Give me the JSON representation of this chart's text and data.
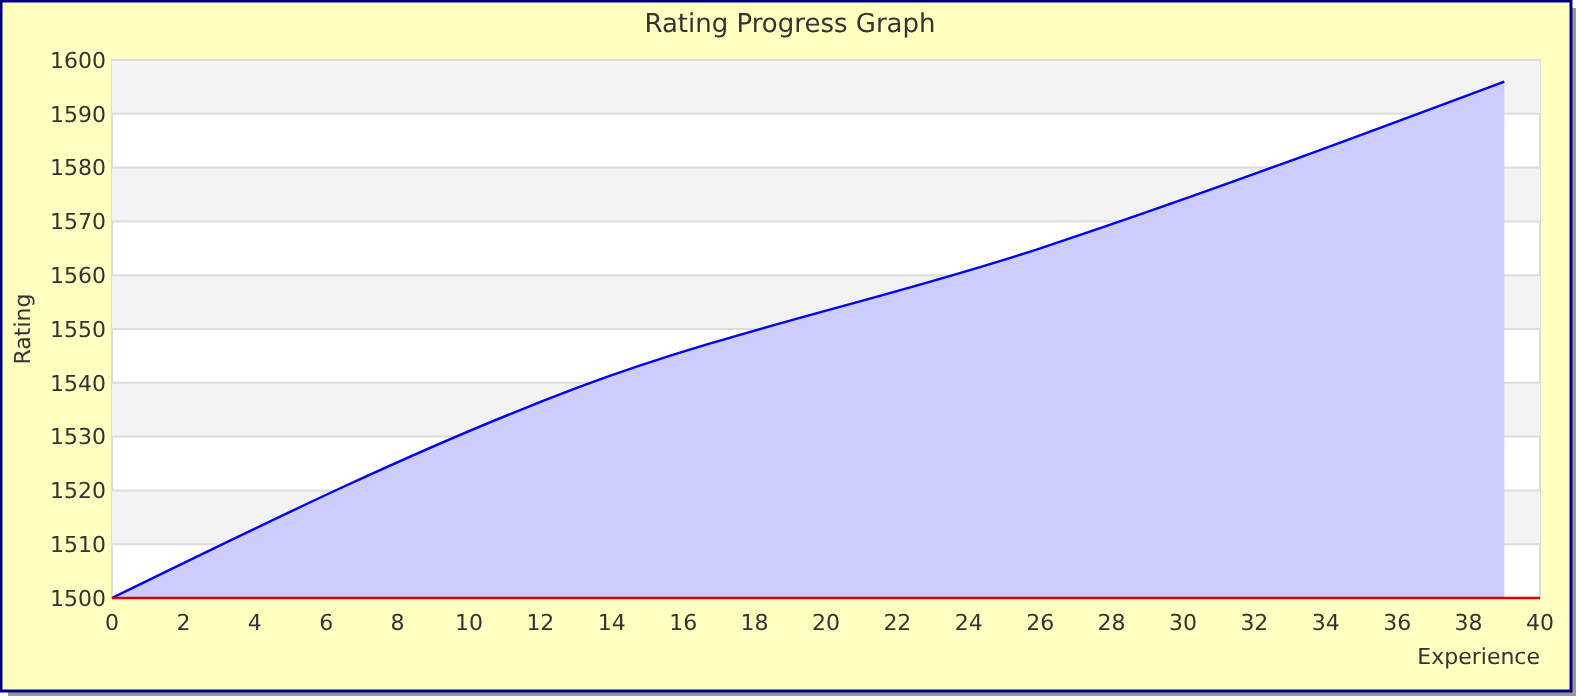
{
  "chart_data": {
    "type": "area",
    "title": "Rating Progress Graph",
    "xlabel": "Experience",
    "ylabel": "Rating",
    "x": [
      0,
      13,
      26,
      39
    ],
    "series": [
      {
        "color": "#0000ff",
        "values": [
          1500,
          1539,
          1565,
          1596
        ]
      }
    ],
    "xlim": [
      0,
      40
    ],
    "xticks": [
      0,
      2,
      4,
      6,
      8,
      10,
      12,
      14,
      16,
      18,
      20,
      22,
      24,
      26,
      28,
      30,
      32,
      34,
      36,
      38,
      40
    ],
    "ylim": [
      1500,
      1600
    ],
    "yticks": [
      1500,
      1510,
      1520,
      1530,
      1540,
      1550,
      1560,
      1570,
      1580,
      1590,
      1600
    ],
    "grid": "y"
  }
}
